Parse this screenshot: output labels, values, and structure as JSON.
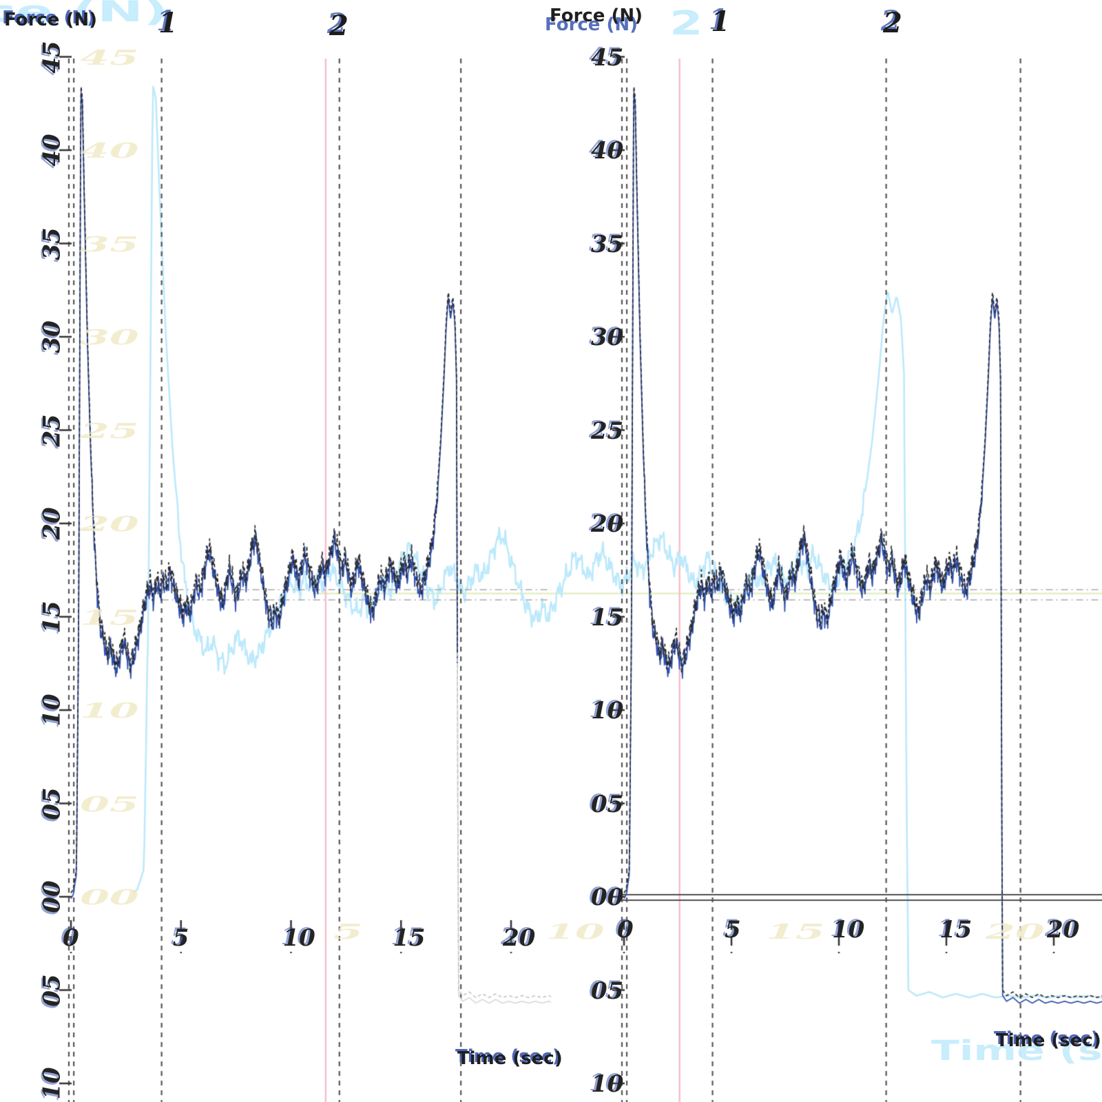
{
  "labels": {
    "y_axis_title": "Force (N)",
    "x_axis_title": "Time (sec)",
    "event1": "1",
    "event2": "2",
    "ghost_event2": "2",
    "y_tick_labels": [
      "45",
      "40",
      "35",
      "30",
      "25",
      "20",
      "15",
      "10",
      "05",
      "00",
      "05",
      "10"
    ],
    "x_tick_labels": [
      "0",
      "5",
      "10",
      "15",
      "20"
    ],
    "ghost_y_tick_labels": [
      "45",
      "40",
      "35",
      "30",
      "25",
      "20",
      "15",
      "10",
      "05",
      "00"
    ],
    "ghost_x_tick_labels": [
      "5",
      "10",
      "15",
      "20"
    ]
  },
  "colors": {
    "background": "#ffffff",
    "black_trace": "#2b2b2b",
    "blue_trace": "#2d4fae",
    "cyan_ghost_trace": "#bce9fb",
    "pale_cyan_text": "#c5ecfc",
    "pale_gold_text": "#f0e9c4",
    "pink_event_line": "#f7bcc9",
    "gray_event_line": "#565656",
    "reference_line": "#a9a9a9",
    "ghost_reference_line": "#e4eec4",
    "zero_line": "#4f4f4f",
    "faint_gray_tail": "#c6c6c6"
  },
  "chart_data": {
    "type": "line",
    "title": "",
    "xlabel": "Time (sec)",
    "ylabel": "Force (N)",
    "xlim": [
      0,
      20
    ],
    "ylim": [
      -10,
      45
    ],
    "x_ticks": [
      0,
      5,
      10,
      15,
      20
    ],
    "y_ticks": [
      45,
      40,
      35,
      30,
      25,
      20,
      15,
      10,
      5,
      0,
      -5,
      -10
    ],
    "grid": false,
    "legend": "none",
    "panels": [
      "trial-view-left",
      "trial-view-right"
    ],
    "description": "Grip-force trace: initial spike to ~43.5 N, noisy hold ~16-18 N, late ramp to ~32.5 N at t~17.2 s, release drop to ~-5.3 N. Same data shown in both panels; a pale-cyan ghost copy of the plot is stretched 2x horizontally across the full image.",
    "series": [
      {
        "name": "force-black",
        "color": "#2b2b2b",
        "style": "dashed",
        "width": 1.7,
        "points": [
          [
            0.0,
            0.2
          ],
          [
            0.1,
            0.4
          ],
          [
            0.25,
            1.5
          ],
          [
            0.35,
            15.0
          ],
          [
            0.45,
            43.5
          ],
          [
            0.52,
            42.8
          ],
          [
            0.6,
            38.0
          ],
          [
            0.75,
            30.0
          ],
          [
            0.9,
            24.0
          ],
          [
            1.05,
            19.5
          ],
          [
            1.2,
            16.5
          ],
          [
            1.35,
            14.6
          ],
          [
            1.5,
            13.9
          ],
          [
            1.65,
            13.1
          ],
          [
            1.8,
            13.7
          ],
          [
            1.95,
            12.8
          ],
          [
            2.1,
            12.4
          ],
          [
            2.25,
            13.3
          ],
          [
            2.4,
            14.0
          ],
          [
            2.55,
            13.2
          ],
          [
            2.7,
            12.6
          ],
          [
            2.85,
            13.0
          ],
          [
            3.0,
            13.8
          ],
          [
            3.15,
            14.6
          ],
          [
            3.3,
            15.6
          ],
          [
            3.45,
            16.3
          ],
          [
            3.6,
            16.9
          ],
          [
            3.75,
            16.2
          ],
          [
            3.9,
            17.1
          ],
          [
            4.05,
            16.5
          ],
          [
            4.2,
            17.2
          ],
          [
            4.35,
            16.7
          ],
          [
            4.5,
            17.6
          ],
          [
            4.65,
            17.0
          ],
          [
            4.8,
            16.3
          ],
          [
            4.95,
            15.7
          ],
          [
            5.1,
            15.2
          ],
          [
            5.25,
            15.9
          ],
          [
            5.4,
            15.3
          ],
          [
            5.55,
            16.2
          ],
          [
            5.7,
            17.0
          ],
          [
            5.85,
            16.4
          ],
          [
            6.0,
            17.3
          ],
          [
            6.15,
            18.3
          ],
          [
            6.3,
            18.7
          ],
          [
            6.45,
            17.9
          ],
          [
            6.6,
            17.1
          ],
          [
            6.75,
            16.3
          ],
          [
            6.9,
            15.8
          ],
          [
            7.05,
            16.9
          ],
          [
            7.2,
            17.7
          ],
          [
            7.35,
            17.0
          ],
          [
            7.5,
            16.2
          ],
          [
            7.65,
            16.8
          ],
          [
            7.8,
            17.5
          ],
          [
            7.95,
            17.1
          ],
          [
            8.1,
            18.0
          ],
          [
            8.25,
            19.0
          ],
          [
            8.4,
            19.4
          ],
          [
            8.55,
            18.3
          ],
          [
            8.7,
            17.2
          ],
          [
            8.85,
            16.1
          ],
          [
            9.0,
            15.3
          ],
          [
            9.15,
            14.8
          ],
          [
            9.3,
            15.5
          ],
          [
            9.45,
            15.0
          ],
          [
            9.6,
            15.9
          ],
          [
            9.75,
            16.7
          ],
          [
            9.9,
            17.4
          ],
          [
            10.05,
            18.3
          ],
          [
            10.2,
            17.8
          ],
          [
            10.35,
            17.1
          ],
          [
            10.5,
            17.9
          ],
          [
            10.65,
            18.5
          ],
          [
            10.8,
            17.8
          ],
          [
            10.95,
            17.2
          ],
          [
            11.1,
            16.6
          ],
          [
            11.25,
            17.2
          ],
          [
            11.4,
            18.0
          ],
          [
            11.55,
            17.4
          ],
          [
            11.7,
            18.1
          ],
          [
            11.85,
            18.8
          ],
          [
            12.0,
            19.3
          ],
          [
            12.15,
            18.4
          ],
          [
            12.3,
            17.7
          ],
          [
            12.45,
            18.3
          ],
          [
            12.6,
            17.5
          ],
          [
            12.75,
            16.7
          ],
          [
            12.9,
            17.3
          ],
          [
            13.05,
            18.2
          ],
          [
            13.2,
            17.4
          ],
          [
            13.35,
            16.7
          ],
          [
            13.5,
            16.0
          ],
          [
            13.65,
            15.4
          ],
          [
            13.8,
            15.9
          ],
          [
            13.95,
            16.6
          ],
          [
            14.1,
            17.3
          ],
          [
            14.25,
            16.7
          ],
          [
            14.4,
            17.5
          ],
          [
            14.55,
            18.0
          ],
          [
            14.7,
            17.3
          ],
          [
            14.85,
            16.8
          ],
          [
            15.0,
            17.6
          ],
          [
            15.15,
            18.1
          ],
          [
            15.3,
            17.5
          ],
          [
            15.45,
            18.3
          ],
          [
            15.6,
            17.7
          ],
          [
            15.75,
            17.0
          ],
          [
            15.9,
            16.5
          ],
          [
            16.05,
            17.2
          ],
          [
            16.2,
            17.8
          ],
          [
            16.35,
            18.6
          ],
          [
            16.5,
            19.8
          ],
          [
            16.65,
            21.8
          ],
          [
            16.8,
            24.5
          ],
          [
            16.95,
            28.0
          ],
          [
            17.05,
            30.8
          ],
          [
            17.15,
            32.5
          ],
          [
            17.25,
            31.2
          ],
          [
            17.35,
            32.2
          ],
          [
            17.45,
            31.0
          ],
          [
            17.52,
            28.0
          ],
          [
            17.58,
            5.0
          ],
          [
            17.62,
            -5.0
          ],
          [
            17.8,
            -5.3
          ],
          [
            18.1,
            -5.1
          ],
          [
            18.4,
            -5.4
          ],
          [
            18.7,
            -5.2
          ],
          [
            19.0,
            -5.4
          ],
          [
            19.3,
            -5.2
          ],
          [
            19.6,
            -5.4
          ],
          [
            19.9,
            -5.3
          ],
          [
            20.2,
            -5.4
          ],
          [
            20.5,
            -5.3
          ],
          [
            20.8,
            -5.4
          ],
          [
            21.1,
            -5.3
          ],
          [
            21.4,
            -5.4
          ],
          [
            21.7,
            -5.3
          ],
          [
            22.0,
            -5.4
          ],
          [
            22.3,
            -5.3
          ]
        ]
      },
      {
        "name": "force-blue",
        "color": "#2d4fae",
        "style": "solid",
        "width": 1.7,
        "same_points_as": "force-black",
        "vertical_offset": -0.3
      },
      {
        "name": "force-ghost-cyan",
        "color": "#bce9fb",
        "style": "solid",
        "width": 2.6,
        "same_points_as": "force-black",
        "layer": "ghost-stretched-2x"
      }
    ],
    "events": {
      "shared": [
        {
          "t": 0.13,
          "label": ""
        },
        {
          "t": 4.12,
          "label": "1"
        },
        {
          "t": 12.2,
          "label": "2"
        }
      ],
      "tail_event_t": {
        "left": 17.72,
        "right": 18.45
      },
      "ghost_pink": [
        {
          "t": 4.38,
          "label": ""
        },
        {
          "t": 12.42,
          "label": "2"
        }
      ]
    },
    "reference_lines": {
      "values": [
        16.45,
        15.9
      ],
      "style": "dash-dot"
    },
    "zero_line": {
      "panel": "right",
      "value": 0,
      "double_line": true
    },
    "jitter": {
      "amplitude": 0.55,
      "freqs": [
        37,
        91,
        173
      ],
      "applies_between": [
        10,
        22
      ]
    }
  }
}
